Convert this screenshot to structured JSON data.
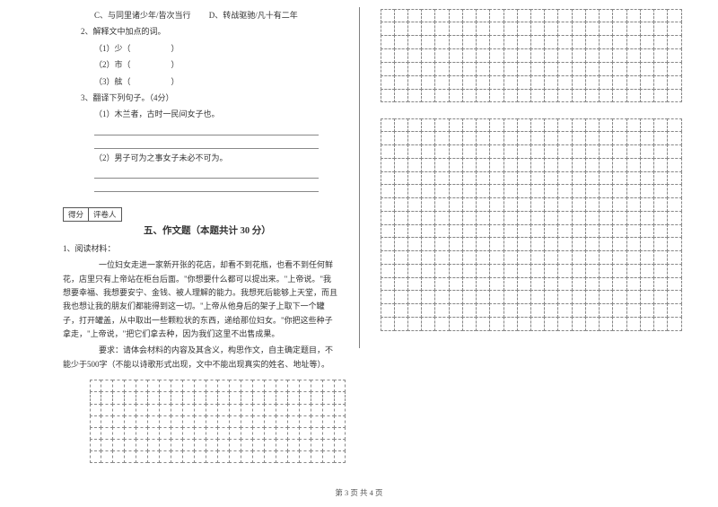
{
  "left": {
    "optC": "C、与同里诸少年/皆次当行",
    "optD": "D、转战驱驰/凡十有二年",
    "q2": "2、解释文中加点的词。",
    "q2a": "（1）少（　　　　　）",
    "q2b": "（2）市（　　　　　）",
    "q2c": "（3）舷（　　　　　）",
    "q3": "3、翻译下列句子。（4分）",
    "q3a": "（1）木兰者，古时一民间女子也。",
    "q3b": "（2）男子可为之事女子未必不可为。",
    "scoreLabel1": "得分",
    "scoreLabel2": "评卷人",
    "sectionTitle": "五、作文题（本题共计 30 分）",
    "q1": "1、阅读材料：",
    "p1": "一位妇女走进一家新开张的花店，却看不到花瓶，也看不到任何鲜花，店里只有上帝站在柜台后面。\"你想要什么都可以提出来。\"上帝说。\"我想要幸福、我想要安宁、金钱、被人理解的能力。我想死后能够上天堂，而且我也想让我的朋友们都能得到这一切。\"上帝从他身后的架子上取下一个罐子，打开罐盖，从中取出一些颗粒状的东西，递给那位妇女。\"你把这些种子拿走，\"上帝说，\"把它们拿去种，因为我们这里不出售成果。",
    "p2": "要求：请体会材料的内容及其含义，构思作文，自主确定题目，不能少于500字（不能以诗歌形式出现，文中不能出现真实的姓名、地址等）。"
  },
  "footer": "第 3 页 共 4 页"
}
